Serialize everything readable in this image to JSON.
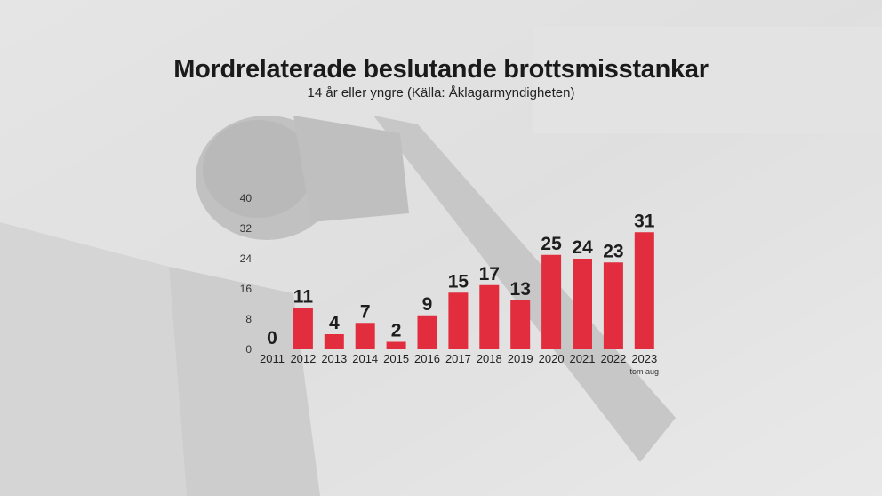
{
  "chart_data": {
    "type": "bar",
    "title": "Mordrelaterade beslutande brottsmisstankar",
    "subtitle": "14 år eller yngre (Källa: Åklagarmyndigheten)",
    "categories": [
      "2011",
      "2012",
      "2013",
      "2014",
      "2015",
      "2016",
      "2017",
      "2018",
      "2019",
      "2020",
      "2021",
      "2022",
      "2023"
    ],
    "values": [
      0,
      11,
      4,
      7,
      2,
      9,
      15,
      17,
      13,
      25,
      24,
      23,
      31
    ],
    "yticks": [
      0,
      8,
      16,
      24,
      32,
      40
    ],
    "ylim": [
      0,
      40
    ],
    "grid": false,
    "bar_color": "#e12d3d",
    "last_category_note": "tom aug",
    "xlabel": "",
    "ylabel": ""
  }
}
